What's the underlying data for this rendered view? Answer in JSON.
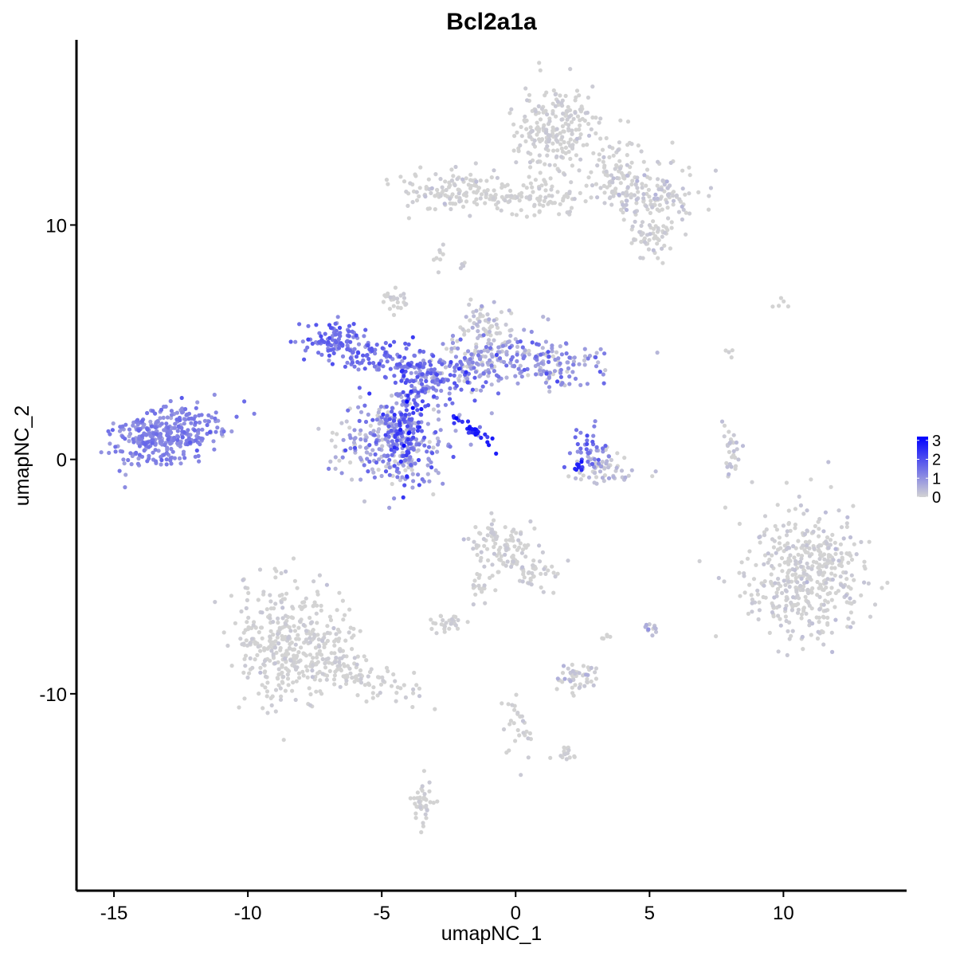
{
  "chart_data": {
    "type": "scatter",
    "title": "Bcl2a1a",
    "xlabel": "umapNC_1",
    "ylabel": "umapNC_2",
    "xlim": [
      -16.4,
      14.6
    ],
    "ylim": [
      -18.4,
      17.9
    ],
    "x_ticks": [
      -15,
      -10,
      -5,
      0,
      5,
      10
    ],
    "x_tick_labels": [
      "-15",
      "-10",
      "-5",
      "0",
      "5",
      "10"
    ],
    "y_ticks": [
      -10,
      0,
      10
    ],
    "y_tick_labels": [
      "-10",
      "0",
      "10"
    ],
    "grid": false,
    "legend": {
      "type": "colorbar",
      "placement": "right",
      "min": 0,
      "max": 3.2,
      "ticks": [
        0,
        1,
        2,
        3
      ],
      "tick_labels": [
        "0",
        "1",
        "2",
        "3"
      ],
      "low_color": "#d3d3d3",
      "high_color": "#0000ff"
    },
    "clusters": [
      {
        "id": "c01",
        "cx": -13.1,
        "cy": 1.0,
        "sx": 1.05,
        "sy": 0.55,
        "n": 340,
        "rot": 0.3,
        "expr_mean": 1.15,
        "expr_sd": 0.25
      },
      {
        "id": "c02",
        "cx": -4.5,
        "cy": 0.7,
        "sx": 1.0,
        "sy": 0.95,
        "n": 300,
        "rot": 0.0,
        "expr_mean": 0.75,
        "expr_sd": 0.55
      },
      {
        "id": "c03",
        "cx": -4.1,
        "cy": 1.5,
        "sx": 0.35,
        "sy": 1.2,
        "n": 110,
        "rot": 0.0,
        "expr_mean": 1.8,
        "expr_sd": 0.55
      },
      {
        "id": "c04",
        "cx": -5.0,
        "cy": 4.4,
        "sx": 1.4,
        "sy": 0.35,
        "n": 130,
        "rot": -0.25,
        "expr_mean": 1.4,
        "expr_sd": 0.35
      },
      {
        "id": "c05",
        "cx": -6.8,
        "cy": 5.2,
        "sx": 0.55,
        "sy": 0.5,
        "n": 70,
        "rot": 0.0,
        "expr_mean": 1.5,
        "expr_sd": 0.4
      },
      {
        "id": "c06",
        "cx": -3.0,
        "cy": 3.3,
        "sx": 1.1,
        "sy": 0.55,
        "n": 150,
        "rot": 0.3,
        "expr_mean": 1.2,
        "expr_sd": 0.55
      },
      {
        "id": "c07",
        "cx": -1.0,
        "cy": 4.4,
        "sx": 1.0,
        "sy": 0.6,
        "n": 130,
        "rot": 0.2,
        "expr_mean": 0.55,
        "expr_sd": 0.55
      },
      {
        "id": "c08",
        "cx": -1.1,
        "cy": 5.7,
        "sx": 0.45,
        "sy": 0.45,
        "n": 60,
        "rot": 0.0,
        "expr_mean": 0.15,
        "expr_sd": 0.25
      },
      {
        "id": "c09",
        "cx": 1.3,
        "cy": 4.1,
        "sx": 1.2,
        "sy": 0.45,
        "n": 130,
        "rot": 0.0,
        "expr_mean": 0.85,
        "expr_sd": 0.55
      },
      {
        "id": "c10",
        "cx": -4.5,
        "cy": 6.8,
        "sx": 0.25,
        "sy": 0.25,
        "n": 25,
        "rot": 0.0,
        "expr_mean": 0.0,
        "expr_sd": 0.1
      },
      {
        "id": "c11",
        "cx": -1.7,
        "cy": 1.3,
        "sx": 0.6,
        "sy": 0.1,
        "n": 30,
        "rot": -0.65,
        "expr_mean": 2.7,
        "expr_sd": 0.3
      },
      {
        "id": "c12",
        "cx": 3.4,
        "cy": -0.5,
        "sx": 0.6,
        "sy": 0.35,
        "n": 60,
        "rot": 0.0,
        "expr_mean": 0.15,
        "expr_sd": 0.3
      },
      {
        "id": "c13",
        "cx": 2.9,
        "cy": 0.4,
        "sx": 0.35,
        "sy": 0.5,
        "n": 40,
        "rot": 0.0,
        "expr_mean": 1.4,
        "expr_sd": 0.45
      },
      {
        "id": "c14",
        "cx": 2.3,
        "cy": -0.3,
        "sx": 0.15,
        "sy": 0.12,
        "n": 8,
        "rot": 0.0,
        "expr_mean": 2.6,
        "expr_sd": 0.3
      },
      {
        "id": "c15",
        "cx": 1.5,
        "cy": 14.0,
        "sx": 0.75,
        "sy": 1.0,
        "n": 230,
        "rot": 0.0,
        "expr_mean": 0.0,
        "expr_sd": 0.1
      },
      {
        "id": "c16",
        "cx": -2.4,
        "cy": 11.5,
        "sx": 0.9,
        "sy": 0.45,
        "n": 120,
        "rot": 0.0,
        "expr_mean": 0.0,
        "expr_sd": 0.1
      },
      {
        "id": "c17",
        "cx": 5.0,
        "cy": 11.3,
        "sx": 0.9,
        "sy": 0.6,
        "n": 140,
        "rot": -0.3,
        "expr_mean": 0.05,
        "expr_sd": 0.2
      },
      {
        "id": "c18",
        "cx": 3.8,
        "cy": 12.3,
        "sx": 0.45,
        "sy": 0.75,
        "n": 60,
        "rot": 0.0,
        "expr_mean": 0.0,
        "expr_sd": 0.1
      },
      {
        "id": "c19",
        "cx": 5.0,
        "cy": 9.5,
        "sx": 0.45,
        "sy": 0.4,
        "n": 60,
        "rot": 0.0,
        "expr_mean": 0.0,
        "expr_sd": 0.15
      },
      {
        "id": "c20",
        "cx": 1.2,
        "cy": 11.2,
        "sx": 1.0,
        "sy": 0.4,
        "n": 80,
        "rot": 0.0,
        "expr_mean": 0.0,
        "expr_sd": 0.1
      },
      {
        "id": "c21",
        "cx": -0.5,
        "cy": 11.2,
        "sx": 0.6,
        "sy": 0.1,
        "n": 25,
        "rot": 0.0,
        "expr_mean": 0.0,
        "expr_sd": 0.1
      },
      {
        "id": "c22",
        "cx": -8.3,
        "cy": -7.9,
        "sx": 1.15,
        "sy": 1.3,
        "n": 390,
        "rot": 0.0,
        "expr_mean": 0.0,
        "expr_sd": 0.1
      },
      {
        "id": "c23",
        "cx": -5.6,
        "cy": -9.4,
        "sx": 1.2,
        "sy": 0.35,
        "n": 90,
        "rot": -0.35,
        "expr_mean": 0.0,
        "expr_sd": 0.1
      },
      {
        "id": "c24",
        "cx": 10.8,
        "cy": -5.0,
        "sx": 1.1,
        "sy": 1.35,
        "n": 450,
        "rot": 0.0,
        "expr_mean": 0.0,
        "expr_sd": 0.15
      },
      {
        "id": "c25",
        "cx": -0.5,
        "cy": -3.8,
        "sx": 0.6,
        "sy": 0.55,
        "n": 100,
        "rot": 0.0,
        "expr_mean": 0.0,
        "expr_sd": 0.15
      },
      {
        "id": "c26",
        "cx": 0.8,
        "cy": -4.8,
        "sx": 0.45,
        "sy": 0.4,
        "n": 40,
        "rot": 0.0,
        "expr_mean": 0.0,
        "expr_sd": 0.1
      },
      {
        "id": "c27",
        "cx": -1.3,
        "cy": -5.6,
        "sx": 0.25,
        "sy": 0.5,
        "n": 20,
        "rot": 0.0,
        "expr_mean": 0.0,
        "expr_sd": 0.1
      },
      {
        "id": "c28",
        "cx": -2.6,
        "cy": -6.9,
        "sx": 0.3,
        "sy": 0.2,
        "n": 30,
        "rot": 0.0,
        "expr_mean": 0.0,
        "expr_sd": 0.1
      },
      {
        "id": "c29",
        "cx": 2.4,
        "cy": -9.3,
        "sx": 0.4,
        "sy": 0.35,
        "n": 50,
        "rot": 0.0,
        "expr_mean": 0.15,
        "expr_sd": 0.3
      },
      {
        "id": "c30",
        "cx": 0.0,
        "cy": -11.3,
        "sx": 0.35,
        "sy": 0.8,
        "n": 30,
        "rot": 0.0,
        "expr_mean": 0.0,
        "expr_sd": 0.1
      },
      {
        "id": "c31",
        "cx": 1.8,
        "cy": -12.6,
        "sx": 0.3,
        "sy": 0.15,
        "n": 15,
        "rot": 0.0,
        "expr_mean": 0.0,
        "expr_sd": 0.1
      },
      {
        "id": "c32",
        "cx": -3.5,
        "cy": -14.6,
        "sx": 0.25,
        "sy": 0.55,
        "n": 40,
        "rot": 0.0,
        "expr_mean": 0.0,
        "expr_sd": 0.1
      },
      {
        "id": "c33",
        "cx": 10.0,
        "cy": 6.7,
        "sx": 0.2,
        "sy": 0.1,
        "n": 5,
        "rot": 0.0,
        "expr_mean": 0.0,
        "expr_sd": 0.1
      },
      {
        "id": "c34",
        "cx": 7.9,
        "cy": 4.6,
        "sx": 0.1,
        "sy": 0.15,
        "n": 4,
        "rot": 0.0,
        "expr_mean": 0.0,
        "expr_sd": 0.1
      },
      {
        "id": "c35",
        "cx": 8.1,
        "cy": 0.3,
        "sx": 0.2,
        "sy": 0.6,
        "n": 30,
        "rot": 0.0,
        "expr_mean": 0.1,
        "expr_sd": 0.2
      },
      {
        "id": "c36",
        "cx": 5.0,
        "cy": -7.3,
        "sx": 0.15,
        "sy": 0.15,
        "n": 12,
        "rot": 0.0,
        "expr_mean": 0.3,
        "expr_sd": 0.3
      },
      {
        "id": "c37",
        "cx": 3.4,
        "cy": -7.6,
        "sx": 0.1,
        "sy": 0.1,
        "n": 5,
        "rot": 0.0,
        "expr_mean": 0.0,
        "expr_sd": 0.1
      },
      {
        "id": "c38",
        "cx": -2.0,
        "cy": 8.3,
        "sx": 0.1,
        "sy": 0.2,
        "n": 4,
        "rot": 0.0,
        "expr_mean": 0.0,
        "expr_sd": 0.1
      },
      {
        "id": "c39",
        "cx": -2.9,
        "cy": 8.7,
        "sx": 0.1,
        "sy": 0.25,
        "n": 8,
        "rot": 0.0,
        "expr_mean": 0.0,
        "expr_sd": 0.1
      }
    ]
  }
}
